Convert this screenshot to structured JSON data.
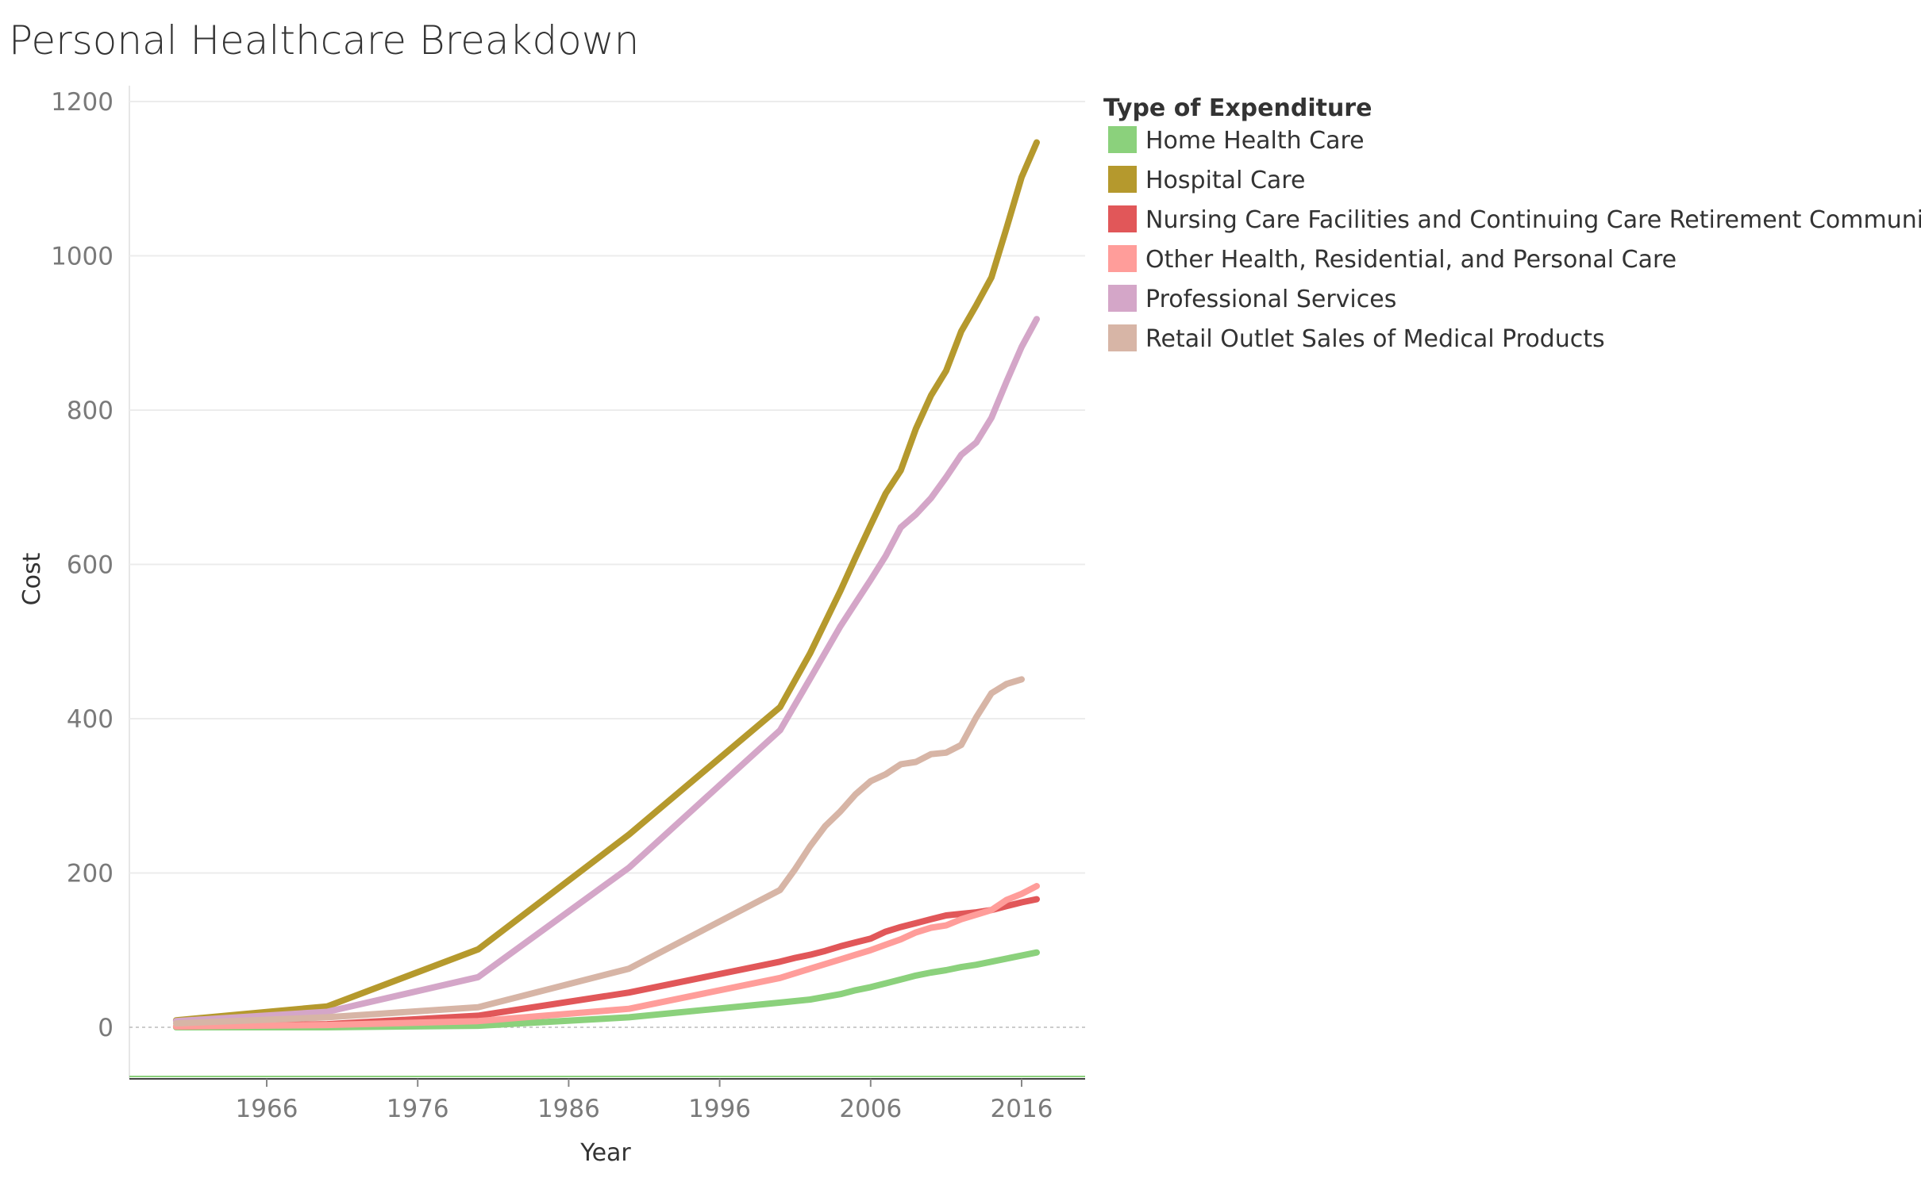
{
  "chart_data": {
    "type": "line",
    "title": "Personal Healthcare Breakdown",
    "xlabel": "Year",
    "ylabel": "Cost",
    "xlim": [
      1954,
      2020
    ],
    "ylim": [
      -65,
      1200
    ],
    "x_ticks": [
      1966,
      1976,
      1986,
      1996,
      2006,
      2016
    ],
    "y_ticks": [
      0,
      200,
      400,
      600,
      800,
      1000,
      1200
    ],
    "grid": true,
    "legend_title": "Type of Expenditure",
    "legend_position": "right",
    "series": [
      {
        "name": "Home Health Care",
        "color": "#8bd17c",
        "points": [
          [
            1960,
            0
          ],
          [
            1970,
            0
          ],
          [
            1980,
            2
          ],
          [
            1990,
            13
          ],
          [
            2000,
            32
          ],
          [
            2002,
            36
          ],
          [
            2004,
            43
          ],
          [
            2005,
            48
          ],
          [
            2006,
            52
          ],
          [
            2007,
            57
          ],
          [
            2008,
            62
          ],
          [
            2009,
            67
          ],
          [
            2010,
            71
          ],
          [
            2011,
            74
          ],
          [
            2012,
            78
          ],
          [
            2013,
            81
          ],
          [
            2014,
            85
          ],
          [
            2015,
            89
          ],
          [
            2016,
            93
          ],
          [
            2017,
            97
          ]
        ]
      },
      {
        "name": "Hospital Care",
        "color": "#b5992d",
        "points": [
          [
            1960,
            9
          ],
          [
            1970,
            27
          ],
          [
            1980,
            101
          ],
          [
            1990,
            250
          ],
          [
            2000,
            415
          ],
          [
            2002,
            485
          ],
          [
            2004,
            566
          ],
          [
            2005,
            609
          ],
          [
            2006,
            651
          ],
          [
            2007,
            692
          ],
          [
            2008,
            722
          ],
          [
            2009,
            776
          ],
          [
            2010,
            819
          ],
          [
            2011,
            851
          ],
          [
            2012,
            902
          ],
          [
            2013,
            936
          ],
          [
            2014,
            972
          ],
          [
            2015,
            1036
          ],
          [
            2016,
            1102
          ],
          [
            2017,
            1147
          ]
        ]
      },
      {
        "name": "Nursing Care Facilities and Continuing Care Retirement Communities",
        "color": "#e15759",
        "points": [
          [
            1960,
            1
          ],
          [
            1970,
            4
          ],
          [
            1980,
            15
          ],
          [
            1990,
            45
          ],
          [
            2000,
            85
          ],
          [
            2001,
            90
          ],
          [
            2002,
            94
          ],
          [
            2003,
            99
          ],
          [
            2004,
            105
          ],
          [
            2005,
            110
          ],
          [
            2006,
            115
          ],
          [
            2007,
            124
          ],
          [
            2008,
            130
          ],
          [
            2009,
            135
          ],
          [
            2010,
            140
          ],
          [
            2011,
            145
          ],
          [
            2012,
            147
          ],
          [
            2013,
            149
          ],
          [
            2014,
            152
          ],
          [
            2015,
            157
          ],
          [
            2016,
            162
          ],
          [
            2017,
            166
          ]
        ]
      },
      {
        "name": "Other Health, Residential, and Personal Care",
        "color": "#ff9d9a",
        "points": [
          [
            1960,
            1
          ],
          [
            1970,
            3
          ],
          [
            1980,
            8
          ],
          [
            1990,
            24
          ],
          [
            2000,
            64
          ],
          [
            2002,
            76
          ],
          [
            2004,
            88
          ],
          [
            2005,
            94
          ],
          [
            2006,
            100
          ],
          [
            2007,
            107
          ],
          [
            2008,
            114
          ],
          [
            2009,
            123
          ],
          [
            2010,
            129
          ],
          [
            2011,
            132
          ],
          [
            2012,
            140
          ],
          [
            2013,
            146
          ],
          [
            2014,
            152
          ],
          [
            2015,
            165
          ],
          [
            2016,
            173
          ],
          [
            2017,
            183
          ]
        ]
      },
      {
        "name": "Professional Services",
        "color": "#d4a6c8",
        "points": [
          [
            1960,
            8
          ],
          [
            1970,
            20
          ],
          [
            1980,
            65
          ],
          [
            1990,
            207
          ],
          [
            2000,
            385
          ],
          [
            2002,
            452
          ],
          [
            2004,
            520
          ],
          [
            2005,
            550
          ],
          [
            2006,
            580
          ],
          [
            2007,
            611
          ],
          [
            2008,
            648
          ],
          [
            2009,
            665
          ],
          [
            2010,
            686
          ],
          [
            2011,
            713
          ],
          [
            2012,
            742
          ],
          [
            2013,
            758
          ],
          [
            2014,
            790
          ],
          [
            2015,
            837
          ],
          [
            2016,
            882
          ],
          [
            2017,
            918
          ]
        ]
      },
      {
        "name": "Retail Outlet Sales of Medical Products",
        "color": "#d7b5a6",
        "points": [
          [
            1960,
            5
          ],
          [
            1970,
            13
          ],
          [
            1980,
            26
          ],
          [
            1990,
            76
          ],
          [
            2000,
            178
          ],
          [
            2001,
            205
          ],
          [
            2002,
            235
          ],
          [
            2003,
            261
          ],
          [
            2004,
            280
          ],
          [
            2005,
            302
          ],
          [
            2006,
            319
          ],
          [
            2007,
            328
          ],
          [
            2008,
            341
          ],
          [
            2009,
            344
          ],
          [
            2010,
            354
          ],
          [
            2011,
            356
          ],
          [
            2012,
            366
          ],
          [
            2013,
            402
          ],
          [
            2014,
            433
          ],
          [
            2015,
            445
          ],
          [
            2016,
            451
          ]
        ]
      }
    ]
  }
}
